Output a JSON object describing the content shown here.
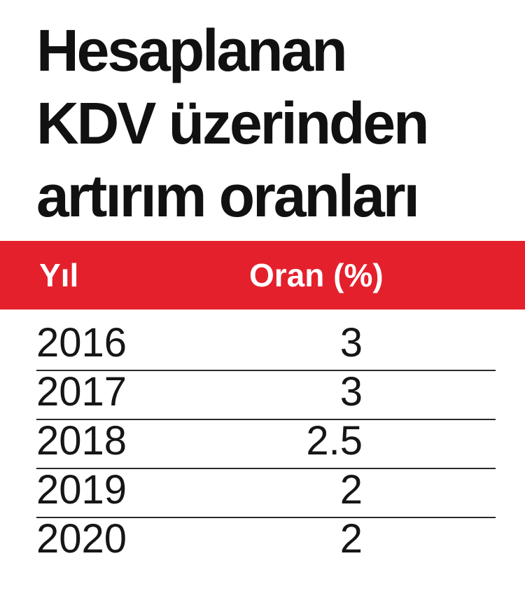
{
  "title_lines": [
    "Hesaplanan",
    "KDV üzerinden",
    "artırım oranları"
  ],
  "header_color": "#e4202c",
  "chart_data": {
    "type": "table",
    "title": "Hesaplanan KDV üzerinden artırım oranları",
    "columns": [
      "Yıl",
      "Oran (%)"
    ],
    "rows": [
      [
        "2016",
        "3"
      ],
      [
        "2017",
        "3"
      ],
      [
        "2018",
        "2.5"
      ],
      [
        "2019",
        "2"
      ],
      [
        "2020",
        "2"
      ]
    ]
  }
}
